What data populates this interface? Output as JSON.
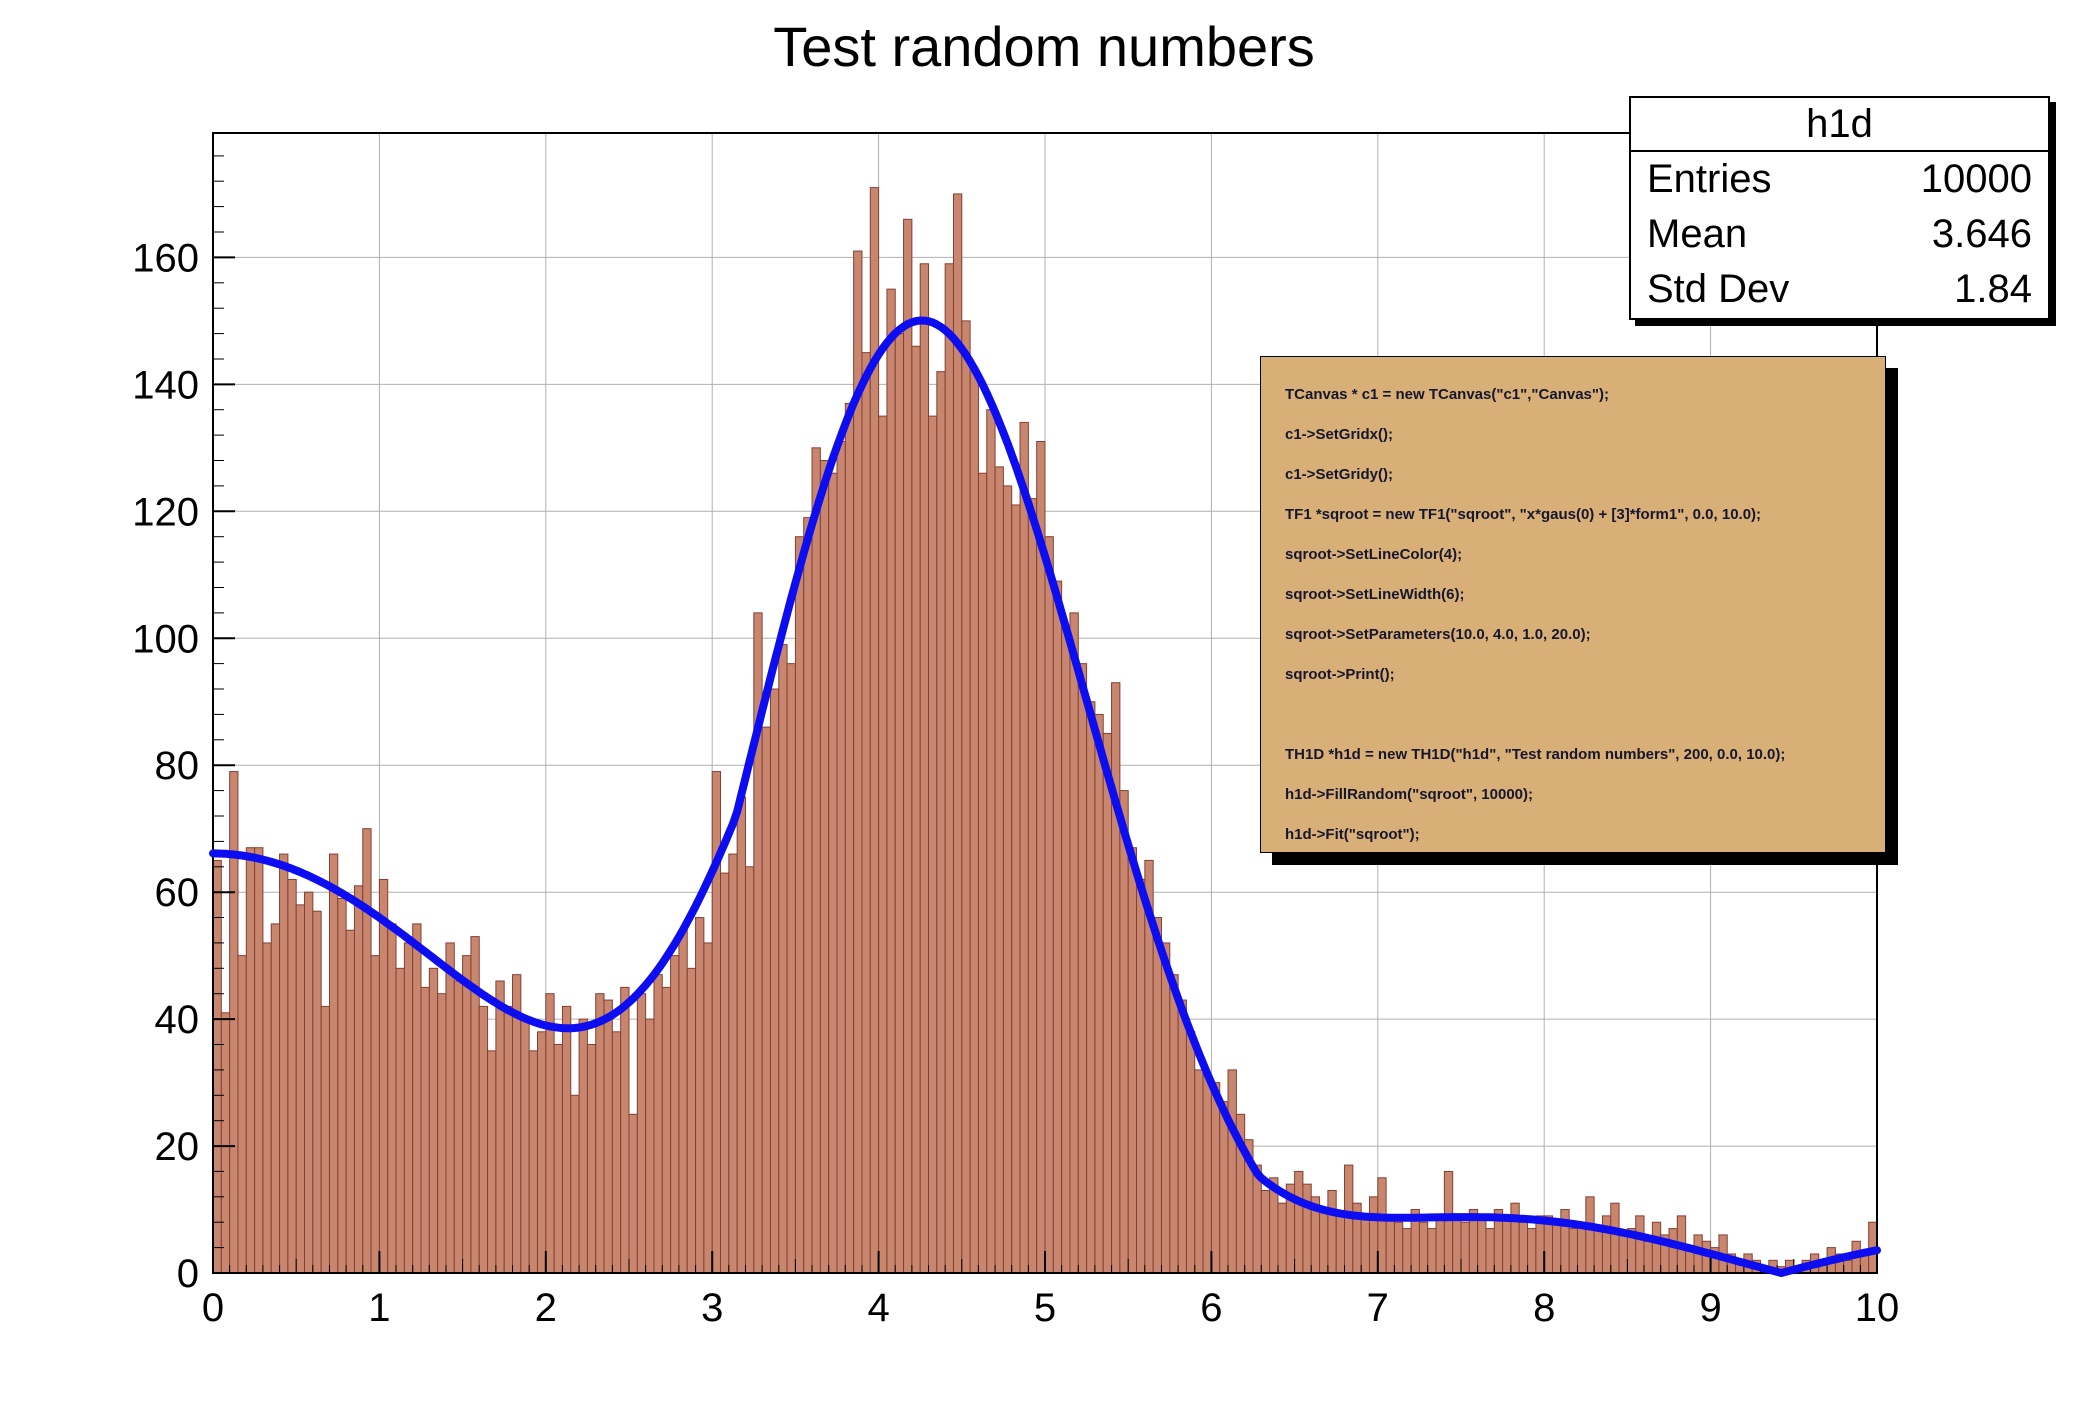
{
  "title": "Test random numbers",
  "stats_box": {
    "title": "h1d",
    "rows": [
      {
        "label": "Entries",
        "value": "10000"
      },
      {
        "label": "Mean",
        "value": "3.646"
      },
      {
        "label": "Std Dev",
        "value": "1.84"
      }
    ]
  },
  "code_box": {
    "bg_color": "#d8af76",
    "lines": [
      "TCanvas * c1 = new TCanvas(\"c1\",\"Canvas\");",
      "c1->SetGridx();",
      "c1->SetGridy();",
      "TF1 *sqroot = new TF1(\"sqroot\", \"x*gaus(0) + [3]*form1\", 0.0, 10.0);",
      "sqroot->SetLineColor(4);",
      "sqroot->SetLineWidth(6);",
      "sqroot->SetParameters(10.0, 4.0, 1.0, 20.0);",
      "sqroot->Print();",
      "",
      "TH1D *h1d = new TH1D(\"h1d\", \"Test random numbers\", 200, 0.0, 10.0);",
      "h1d->FillRandom(\"sqroot\", 10000);",
      "h1d->Fit(\"sqroot\");"
    ]
  },
  "chart_data": {
    "type": "bar",
    "title": "Test random numbers",
    "series_name": "h1d",
    "n_bins": 200,
    "bin_width": 0.05,
    "x_range": [
      0,
      10
    ],
    "y_range": [
      0,
      179.6
    ],
    "x_ticks": [
      0,
      1,
      2,
      3,
      4,
      5,
      6,
      7,
      8,
      9,
      10
    ],
    "y_ticks": [
      0,
      20,
      40,
      60,
      80,
      100,
      120,
      140,
      160
    ],
    "grid": true,
    "grid_color": "#b0b0b0",
    "bar_fill": "#c8866e",
    "bar_stroke": "#834034",
    "bins": [
      65,
      41,
      79,
      50,
      67,
      67,
      52,
      55,
      66,
      62,
      58,
      60,
      57,
      42,
      66,
      59,
      54,
      61,
      70,
      50,
      62,
      55,
      48,
      52,
      55,
      45,
      48,
      44,
      52,
      46,
      50,
      53,
      42,
      35,
      46,
      42,
      47,
      40,
      35,
      38,
      44,
      36,
      42,
      28,
      40,
      36,
      44,
      43,
      38,
      45,
      25,
      44,
      40,
      47,
      45,
      50,
      54,
      48,
      56,
      52,
      79,
      63,
      66,
      75,
      64,
      104,
      86,
      92,
      99,
      96,
      116,
      119,
      130,
      128,
      126,
      131,
      137,
      161,
      145,
      171,
      135,
      155,
      148,
      166,
      146,
      159,
      135,
      142,
      159,
      170,
      150,
      142,
      126,
      136,
      127,
      124,
      121,
      134,
      122,
      131,
      116,
      109,
      102,
      104,
      96,
      90,
      88,
      85,
      93,
      76,
      67,
      62,
      65,
      56,
      52,
      47,
      43,
      38,
      32,
      31,
      30,
      27,
      32,
      25,
      21,
      17,
      13,
      15,
      11,
      14,
      16,
      14,
      12,
      10,
      13,
      9,
      17,
      11,
      9,
      12,
      15,
      9,
      8,
      7,
      10,
      8,
      7,
      9,
      16,
      9,
      8,
      10,
      9,
      7,
      10,
      9,
      11,
      8,
      7,
      9,
      9,
      8,
      10,
      7,
      8,
      12,
      7,
      9,
      11,
      6,
      7,
      9,
      5,
      8,
      6,
      7,
      9,
      4,
      6,
      5,
      4,
      6,
      3,
      2,
      3,
      2,
      1,
      2,
      1,
      2,
      1,
      2,
      3,
      2,
      4,
      3,
      2,
      5,
      3,
      8
    ],
    "fit_curve": {
      "name": "sqroot",
      "formula": "A*x*exp(-0.5*((x-mean)/sigma)^2) + B*abs(sin(x)/x)",
      "params": {
        "A": 33.05,
        "mean": 4.0,
        "sigma": 1.0,
        "B": 66.1
      },
      "color": "#0d0df2",
      "width": 8
    }
  }
}
